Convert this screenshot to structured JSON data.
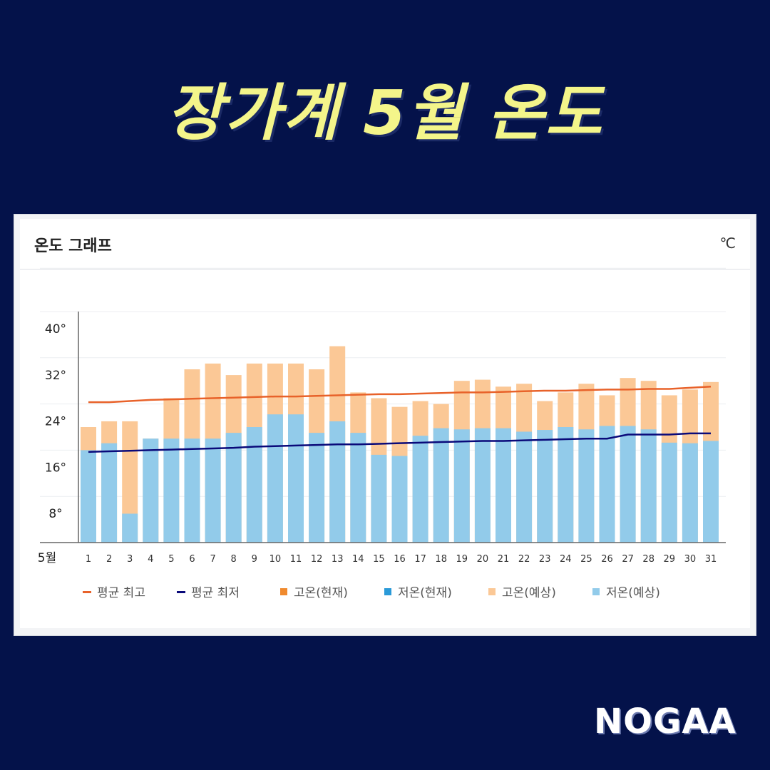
{
  "headline": "장가계 5월 온도",
  "card": {
    "title": "온도 그래프",
    "unit": "℃"
  },
  "brand": "NOGAA",
  "chart_data": {
    "type": "bar",
    "month_label": "5월",
    "categories": [
      "1",
      "2",
      "3",
      "4",
      "5",
      "6",
      "7",
      "8",
      "9",
      "10",
      "11",
      "12",
      "13",
      "14",
      "15",
      "16",
      "17",
      "18",
      "19",
      "20",
      "21",
      "22",
      "23",
      "24",
      "25",
      "26",
      "27",
      "28",
      "29",
      "30",
      "31"
    ],
    "y_ticks": [
      "8°",
      "16°",
      "24°",
      "32°",
      "40°"
    ],
    "ylim": [
      0,
      40
    ],
    "series": [
      {
        "name": "고온(예상)",
        "color": "#fbc896",
        "values": [
          20,
          21,
          21,
          18,
          25,
          30,
          31,
          29,
          31,
          31,
          31,
          30,
          34,
          26,
          25,
          23.5,
          24.5,
          24,
          28,
          28.2,
          27,
          27.5,
          24.5,
          26,
          27.5,
          25.5,
          28.5,
          28,
          25.5,
          26.5,
          27.8
        ]
      },
      {
        "name": "저온(예상)",
        "color": "#92cbea",
        "values": [
          16,
          17.2,
          5,
          18,
          18,
          18,
          18,
          19,
          20,
          22.2,
          22.2,
          19,
          21,
          19,
          15.2,
          15,
          18.5,
          19.8,
          19.6,
          19.8,
          19.8,
          19.2,
          19.5,
          20,
          19.6,
          20.2,
          20.2,
          19.6,
          17.3,
          17.2,
          17.6
        ]
      },
      {
        "name": "평균 최고",
        "color": "#e8622a",
        "values": [
          24.3,
          24.3,
          24.5,
          24.7,
          24.8,
          24.9,
          25.0,
          25.1,
          25.2,
          25.3,
          25.3,
          25.4,
          25.5,
          25.6,
          25.7,
          25.7,
          25.8,
          25.9,
          26.0,
          26.0,
          26.1,
          26.2,
          26.3,
          26.3,
          26.4,
          26.5,
          26.5,
          26.6,
          26.6,
          26.8,
          27.0
        ]
      },
      {
        "name": "평균 최저",
        "color": "#0a0a7a",
        "values": [
          15.7,
          15.8,
          15.9,
          16.0,
          16.1,
          16.2,
          16.3,
          16.4,
          16.6,
          16.7,
          16.8,
          16.9,
          17.0,
          17.0,
          17.1,
          17.2,
          17.3,
          17.4,
          17.5,
          17.6,
          17.6,
          17.7,
          17.8,
          17.9,
          18.0,
          18.0,
          18.7,
          18.7,
          18.7,
          18.9,
          18.9
        ]
      }
    ],
    "legend": [
      {
        "name": "평균 최고",
        "kind": "line",
        "color": "#e8622a"
      },
      {
        "name": "평균 최저",
        "kind": "line",
        "color": "#0a0a7a"
      },
      {
        "name": "고온(현재)",
        "kind": "box",
        "color": "#f08a2e"
      },
      {
        "name": "저온(현재)",
        "kind": "box",
        "color": "#2a9ad8"
      },
      {
        "name": "고온(예상)",
        "kind": "box",
        "color": "#fbc896"
      },
      {
        "name": "저온(예상)",
        "kind": "box",
        "color": "#92cbea"
      }
    ],
    "legend_position": "bottom",
    "grid": true
  }
}
